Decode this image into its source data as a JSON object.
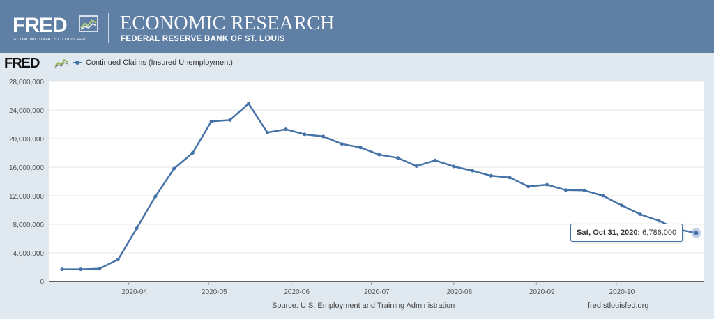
{
  "header": {
    "logo_text": "FRED",
    "logo_sub": "ECONOMIC DATA  |  ST. LOUIS FED",
    "title": "ECONOMIC RESEARCH",
    "subtitle": "FEDERAL RESERVE BANK OF ST. LOUIS"
  },
  "chart_logo_text": "FRED",
  "tooltip": {
    "date": "Sat, Oct 31, 2020:",
    "value": "6,786,000"
  },
  "footer": {
    "source": "Source: U.S. Employment and Training Administration",
    "link": "fred.stlouisfed.org"
  },
  "colors": {
    "header_bg": "#5f7fa5",
    "series": "#4572a7",
    "plot_bg": "#ffffff",
    "page_bg": "#e1e9f0"
  },
  "chart_data": {
    "type": "line",
    "title": "",
    "xlabel": "",
    "ylabel": "",
    "series": [
      {
        "name": "Continued Claims (Insured Unemployment)",
        "x": [
          "2020-03-07",
          "2020-03-14",
          "2020-03-21",
          "2020-03-28",
          "2020-04-04",
          "2020-04-11",
          "2020-04-18",
          "2020-04-25",
          "2020-05-02",
          "2020-05-09",
          "2020-05-16",
          "2020-05-23",
          "2020-05-30",
          "2020-06-06",
          "2020-06-13",
          "2020-06-20",
          "2020-06-27",
          "2020-07-04",
          "2020-07-11",
          "2020-07-18",
          "2020-07-25",
          "2020-08-01",
          "2020-08-08",
          "2020-08-15",
          "2020-08-22",
          "2020-08-29",
          "2020-09-05",
          "2020-09-12",
          "2020-09-19",
          "2020-09-26",
          "2020-10-03",
          "2020-10-10",
          "2020-10-17",
          "2020-10-24",
          "2020-10-31"
        ],
        "values": [
          1700000,
          1700000,
          1780000,
          3060000,
          7450000,
          11900000,
          15800000,
          18000000,
          22400000,
          22600000,
          24900000,
          20850000,
          21300000,
          20600000,
          20300000,
          19250000,
          18750000,
          17750000,
          17300000,
          16150000,
          16950000,
          16100000,
          15500000,
          14800000,
          14550000,
          13300000,
          13550000,
          12800000,
          12750000,
          12000000,
          10650000,
          9400000,
          8500000,
          7300000,
          6786000
        ]
      }
    ],
    "x_ticks": [
      "2020-04",
      "2020-05",
      "2020-06",
      "2020-07",
      "2020-08",
      "2020-09",
      "2020-10"
    ],
    "y_ticks": [
      "0",
      "4,000,000",
      "8,000,000",
      "12,000,000",
      "16,000,000",
      "20,000,000",
      "24,000,000",
      "28,000,000"
    ],
    "ylim": [
      0,
      28000000
    ],
    "grid": true,
    "legend": "top-left"
  }
}
